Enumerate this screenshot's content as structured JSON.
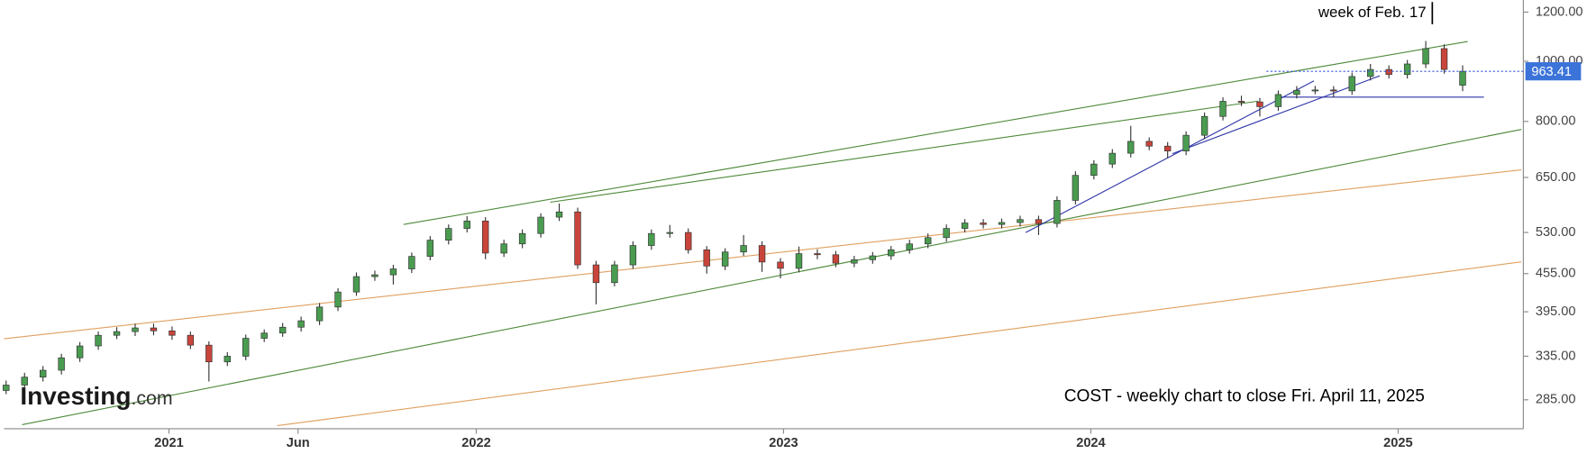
{
  "chart_data": {
    "type": "candlestick",
    "log_y": true,
    "up_color": "#4a9c50",
    "down_color": "#c9453b",
    "xlim": [
      2020.463,
      2025.401
    ],
    "xticks": [
      {
        "value": 2021,
        "label": "2021"
      },
      {
        "value": 2021.42,
        "label": "Jun"
      },
      {
        "value": 2022,
        "label": "2022"
      },
      {
        "value": 2023,
        "label": "2023"
      },
      {
        "value": 2024,
        "label": "2024"
      },
      {
        "value": 2025,
        "label": "2025"
      }
    ],
    "ylim": [
      256,
      1255
    ],
    "yticks": [
      {
        "value": 285,
        "label": "285.00"
      },
      {
        "value": 335,
        "label": "335.00"
      },
      {
        "value": 395,
        "label": "395.00"
      },
      {
        "value": 455,
        "label": "455.00"
      },
      {
        "value": 530,
        "label": "530.00"
      },
      {
        "value": 650,
        "label": "650.00"
      },
      {
        "value": 800,
        "label": "800.00"
      },
      {
        "value": 1000,
        "label": "1000.00"
      },
      {
        "value": 1200,
        "label": "1200.00"
      }
    ],
    "x": [
      2020.47,
      2020.53,
      2020.59,
      2020.65,
      2020.71,
      2020.77,
      2020.83,
      2020.89,
      2020.95,
      2021.01,
      2021.07,
      2021.13,
      2021.19,
      2021.25,
      2021.31,
      2021.37,
      2021.43,
      2021.49,
      2021.55,
      2021.61,
      2021.67,
      2021.73,
      2021.79,
      2021.85,
      2021.91,
      2021.97,
      2022.03,
      2022.09,
      2022.15,
      2022.21,
      2022.27,
      2022.33,
      2022.39,
      2022.45,
      2022.51,
      2022.57,
      2022.63,
      2022.69,
      2022.75,
      2022.81,
      2022.87,
      2022.93,
      2022.99,
      2023.05,
      2023.11,
      2023.17,
      2023.23,
      2023.29,
      2023.35,
      2023.41,
      2023.47,
      2023.53,
      2023.59,
      2023.65,
      2023.71,
      2023.77,
      2023.83,
      2023.89,
      2023.95,
      2024.01,
      2024.07,
      2024.13,
      2024.19,
      2024.25,
      2024.31,
      2024.37,
      2024.43,
      2024.49,
      2024.55,
      2024.61,
      2024.67,
      2024.73,
      2024.79,
      2024.85,
      2024.91,
      2024.97,
      2025.03,
      2025.09,
      2025.15,
      2025.21
    ],
    "candles": [
      [
        295,
        306,
        291,
        301
      ],
      [
        301,
        315,
        296,
        310
      ],
      [
        310,
        323,
        305,
        318
      ],
      [
        318,
        338,
        313,
        333
      ],
      [
        333,
        353,
        328,
        348
      ],
      [
        348,
        367,
        343,
        362
      ],
      [
        362,
        373,
        357,
        367
      ],
      [
        367,
        378,
        361,
        372
      ],
      [
        372,
        378,
        362,
        368
      ],
      [
        368,
        374,
        356,
        362
      ],
      [
        362,
        367,
        344,
        349
      ],
      [
        349,
        354,
        305,
        328
      ],
      [
        328,
        340,
        323,
        335
      ],
      [
        335,
        363,
        330,
        358
      ],
      [
        358,
        370,
        353,
        365
      ],
      [
        365,
        379,
        360,
        373
      ],
      [
        373,
        388,
        367,
        382
      ],
      [
        382,
        408,
        376,
        402
      ],
      [
        402,
        431,
        396,
        425
      ],
      [
        425,
        457,
        419,
        450
      ],
      [
        450,
        460,
        443,
        453
      ],
      [
        453,
        470,
        437,
        463
      ],
      [
        463,
        492,
        456,
        485
      ],
      [
        485,
        523,
        478,
        515
      ],
      [
        515,
        546,
        507,
        538
      ],
      [
        538,
        563,
        530,
        553
      ],
      [
        553,
        561,
        480,
        491
      ],
      [
        491,
        516,
        484,
        508
      ],
      [
        508,
        536,
        500,
        528
      ],
      [
        528,
        569,
        520,
        561
      ],
      [
        561,
        590,
        553,
        572
      ],
      [
        572,
        581,
        463,
        470
      ],
      [
        470,
        477,
        406,
        440
      ],
      [
        440,
        477,
        434,
        470
      ],
      [
        470,
        513,
        463,
        505
      ],
      [
        505,
        536,
        497,
        528
      ],
      [
        528,
        545,
        520,
        530
      ],
      [
        530,
        538,
        490,
        497
      ],
      [
        497,
        504,
        455,
        468
      ],
      [
        468,
        500,
        461,
        493
      ],
      [
        493,
        525,
        486,
        505
      ],
      [
        505,
        513,
        458,
        475
      ],
      [
        475,
        482,
        447,
        464
      ],
      [
        464,
        503,
        457,
        490
      ],
      [
        490,
        498,
        480,
        488
      ],
      [
        488,
        495,
        466,
        473
      ],
      [
        473,
        486,
        466,
        479
      ],
      [
        479,
        493,
        472,
        486
      ],
      [
        486,
        504,
        479,
        497
      ],
      [
        497,
        516,
        490,
        508
      ],
      [
        508,
        528,
        500,
        520
      ],
      [
        520,
        546,
        512,
        538
      ],
      [
        538,
        557,
        530,
        549
      ],
      [
        549,
        557,
        538,
        546
      ],
      [
        546,
        558,
        538,
        550
      ],
      [
        550,
        564,
        542,
        556
      ],
      [
        556,
        564,
        525,
        548
      ],
      [
        548,
        606,
        540,
        597
      ],
      [
        597,
        665,
        588,
        655
      ],
      [
        655,
        693,
        645,
        683
      ],
      [
        683,
        722,
        673,
        711
      ],
      [
        711,
        787,
        700,
        743
      ],
      [
        743,
        754,
        719,
        730
      ],
      [
        730,
        741,
        698,
        717
      ],
      [
        717,
        771,
        706,
        760
      ],
      [
        760,
        827,
        749,
        815
      ],
      [
        815,
        875,
        803,
        862
      ],
      [
        862,
        880,
        847,
        860
      ],
      [
        860,
        873,
        815,
        845
      ],
      [
        845,
        897,
        832,
        884
      ],
      [
        884,
        912,
        871,
        898
      ],
      [
        898,
        913,
        885,
        899
      ],
      [
        899,
        912,
        875,
        896
      ],
      [
        896,
        959,
        883,
        945
      ],
      [
        945,
        990,
        931,
        970
      ],
      [
        970,
        985,
        938,
        952
      ],
      [
        952,
        1005,
        938,
        990
      ],
      [
        990,
        1078,
        975,
        1048
      ],
      [
        1048,
        1065,
        955,
        970
      ],
      [
        915,
        985,
        895,
        963.41
      ]
    ],
    "annotations": [
      "week of Feb. 17",
      "COST - weekly chart to close Fri. April 11, 2025"
    ],
    "watermark": [
      "Investing",
      ".com"
    ]
  }
}
